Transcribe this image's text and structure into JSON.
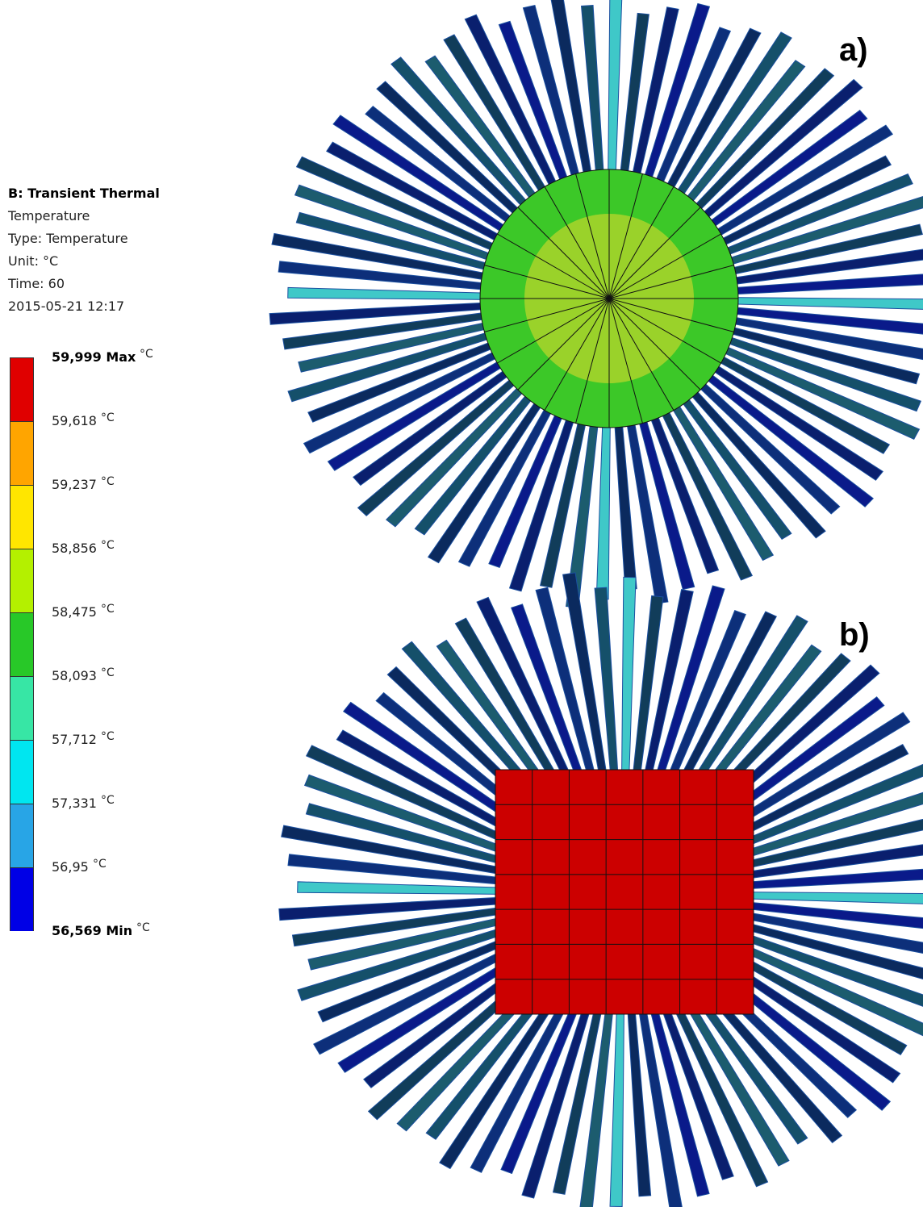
{
  "legend": {
    "title": "B: Transient Thermal",
    "lines": [
      "Temperature",
      "Type: Temperature",
      "Unit: °C",
      "Time: 60",
      "2015-05-21 12:17"
    ],
    "entries": [
      {
        "label": "59,999 Max",
        "unit": "°C"
      },
      {
        "label": "59,618",
        "unit": "°C"
      },
      {
        "label": "59,237",
        "unit": "°C"
      },
      {
        "label": "58,856",
        "unit": "°C"
      },
      {
        "label": "58,475",
        "unit": "°C"
      },
      {
        "label": "58,093",
        "unit": "°C"
      },
      {
        "label": "57,712",
        "unit": "°C"
      },
      {
        "label": "57,331",
        "unit": "°C"
      },
      {
        "label": "56,95",
        "unit": "°C"
      },
      {
        "label": "56,569 Min",
        "unit": "°C"
      }
    ],
    "colors": [
      "#e00000",
      "#ffa500",
      "#ffe600",
      "#b4f000",
      "#28c828",
      "#37e6a5",
      "#00e6f0",
      "#28a5e6",
      "#0000e6"
    ]
  },
  "panels": [
    "a)",
    "b)"
  ]
}
